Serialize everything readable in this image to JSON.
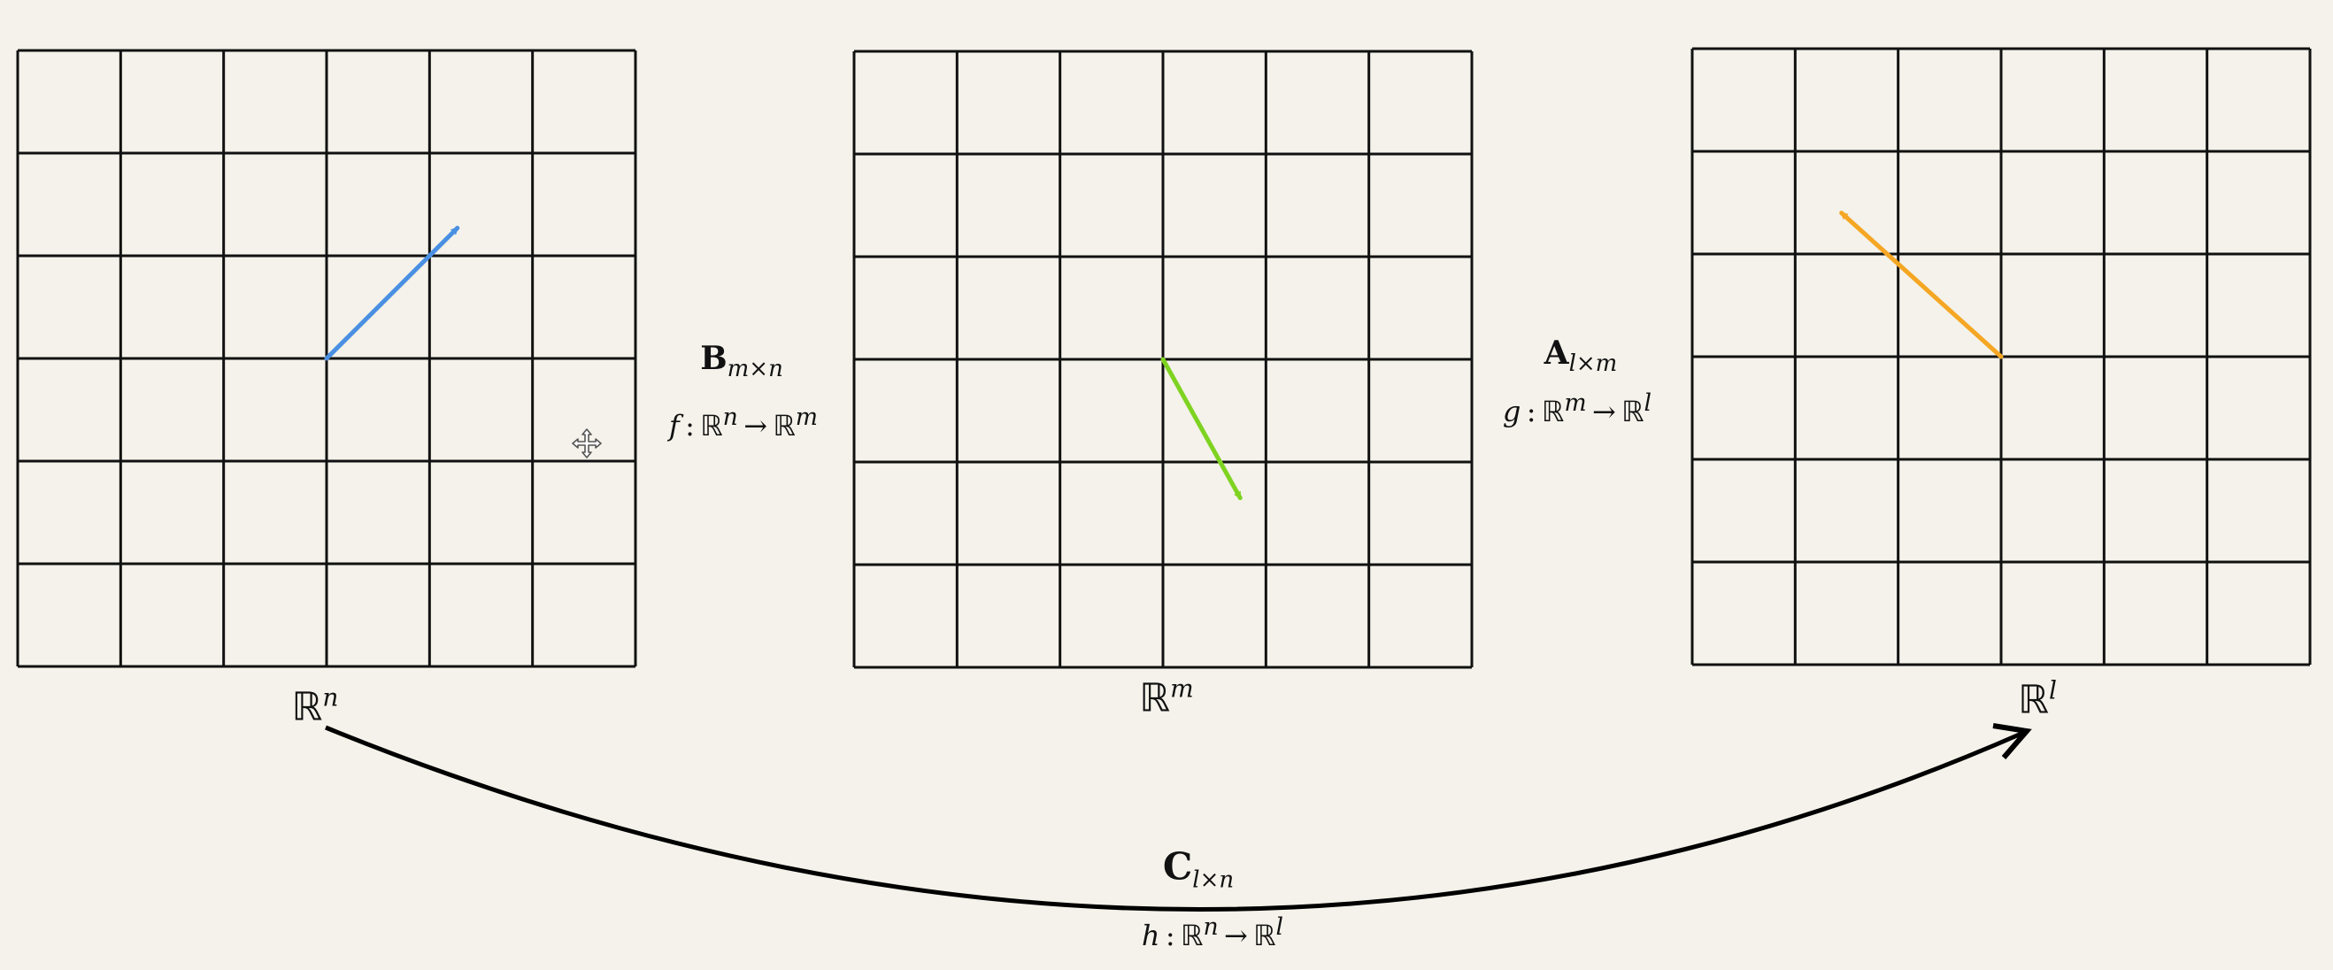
{
  "colors": {
    "background": "#f4f2ea",
    "grid": "#111111",
    "vector_rn": "#4a90e2",
    "vector_rm": "#7ed321",
    "vector_rl": "#f5a623",
    "composite_arrow": "#000000"
  },
  "grids": [
    {
      "id": "grid-rn",
      "rows": 6,
      "cols": 6,
      "space_symbol": "ℝ",
      "space_exp": "n"
    },
    {
      "id": "grid-rm",
      "rows": 6,
      "cols": 6,
      "space_symbol": "ℝ",
      "space_exp": "m"
    },
    {
      "id": "grid-rl",
      "rows": 6,
      "cols": 6,
      "space_symbol": "ℝ",
      "space_exp": "l"
    }
  ],
  "vectors": [
    {
      "grid": 0,
      "name": "blue-vector",
      "dx": 1.27,
      "dy": 1.27
    },
    {
      "grid": 1,
      "name": "green-vector",
      "dx": 0.75,
      "dy": -1.35
    },
    {
      "grid": 2,
      "name": "orange-vector",
      "dx": -1.55,
      "dy": 1.4
    }
  ],
  "maps": {
    "B": {
      "matrix": "B",
      "dims": "m×n",
      "func": "f",
      "domain_exp": "n",
      "codomain_exp": "m"
    },
    "A": {
      "matrix": "A",
      "dims": "l×m",
      "func": "g",
      "domain_exp": "m",
      "codomain_exp": "l"
    },
    "C": {
      "matrix": "C",
      "dims": "l×n",
      "func": "h",
      "domain_exp": "n",
      "codomain_exp": "l"
    }
  },
  "symbols": {
    "bb_r": "ℝ",
    "arrow": "→",
    "colon": ":"
  },
  "cursor_icon": "move-cursor-icon"
}
